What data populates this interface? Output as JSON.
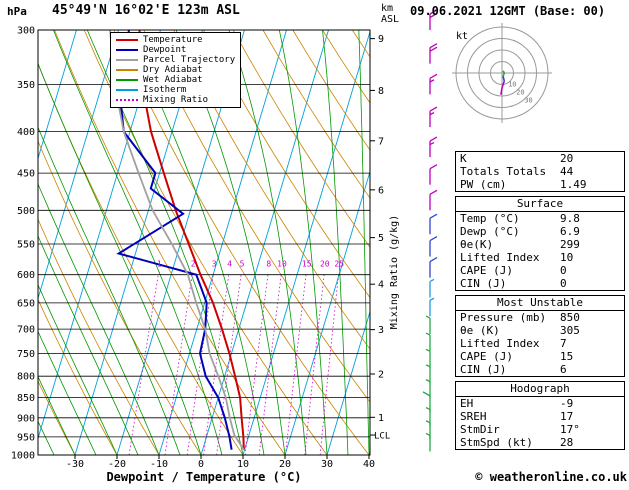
{
  "header": {
    "pressure_unit": "hPa",
    "station": "45°49'N 16°02'E 123m ASL",
    "km_label": "km",
    "asl_label": "ASL",
    "datetime": "09.06.2021 12GMT (Base: 00)"
  },
  "axes": {
    "pressure_ticks": [
      300,
      350,
      400,
      450,
      500,
      550,
      600,
      650,
      700,
      750,
      800,
      850,
      900,
      950,
      1000
    ],
    "temp_ticks": [
      -30,
      -20,
      -10,
      0,
      10,
      20,
      30,
      40
    ],
    "km_ticks": [
      9,
      8,
      7,
      6,
      5,
      4,
      3,
      2,
      1
    ],
    "lcl_label": "LCL",
    "xlabel": "Dewpoint / Temperature (°C)",
    "mixing_ratio_label": "Mixing Ratio (g/kg)",
    "mixing_ratio_values": [
      1,
      2,
      3,
      4,
      5,
      8,
      10,
      15,
      20,
      25
    ]
  },
  "legend": {
    "items": [
      {
        "label": "Temperature",
        "color": "#cc0000",
        "style": "solid"
      },
      {
        "label": "Dewpoint",
        "color": "#0000bb",
        "style": "solid"
      },
      {
        "label": "Parcel Trajectory",
        "color": "#a0a0a0",
        "style": "solid"
      },
      {
        "label": "Dry Adiabat",
        "color": "#cc8400",
        "style": "solid"
      },
      {
        "label": "Wet Adiabat",
        "color": "#009900",
        "style": "solid"
      },
      {
        "label": "Isotherm",
        "color": "#00a0dd",
        "style": "solid"
      },
      {
        "label": "Mixing Ratio",
        "color": "#cc00cc",
        "style": "dotted"
      }
    ]
  },
  "chart_data": {
    "type": "line",
    "title": "Skew-T log-P sounding",
    "pressure_axis_hpa": [
      300,
      1000
    ],
    "temp_axis_c": [
      -40,
      40
    ],
    "series": [
      {
        "name": "Temperature",
        "color": "#cc0000",
        "points_p_t": [
          [
            985,
            9.8
          ],
          [
            950,
            8.8
          ],
          [
            900,
            7.0
          ],
          [
            850,
            5.2
          ],
          [
            800,
            2.5
          ],
          [
            750,
            -0.5
          ],
          [
            700,
            -4.0
          ],
          [
            650,
            -8.0
          ],
          [
            600,
            -13.0
          ],
          [
            550,
            -18.0
          ],
          [
            500,
            -23.5
          ],
          [
            450,
            -29.0
          ],
          [
            400,
            -35.0
          ],
          [
            350,
            -40.5
          ],
          [
            300,
            -45.0
          ]
        ]
      },
      {
        "name": "Dewpoint",
        "color": "#0000bb",
        "points_p_t": [
          [
            985,
            6.9
          ],
          [
            950,
            5.5
          ],
          [
            900,
            3.0
          ],
          [
            850,
            0.0
          ],
          [
            800,
            -4.5
          ],
          [
            750,
            -7.5
          ],
          [
            700,
            -8.0
          ],
          [
            650,
            -9.5
          ],
          [
            600,
            -14.0
          ],
          [
            565,
            -34.0
          ],
          [
            505,
            -21.5
          ],
          [
            470,
            -31.0
          ],
          [
            450,
            -31.0
          ],
          [
            400,
            -41.5
          ],
          [
            350,
            -46.0
          ],
          [
            300,
            -47.5
          ]
        ]
      },
      {
        "name": "Parcel Trajectory",
        "color": "#a0a0a0",
        "points_p_t": [
          [
            985,
            9.8
          ],
          [
            945,
            6.5
          ],
          [
            900,
            4.2
          ],
          [
            850,
            1.8
          ],
          [
            800,
            -1.5
          ],
          [
            750,
            -5.2
          ],
          [
            700,
            -8.0
          ],
          [
            650,
            -12.0
          ],
          [
            600,
            -16.0
          ],
          [
            550,
            -22.0
          ],
          [
            500,
            -29.0
          ],
          [
            450,
            -35.0
          ],
          [
            400,
            -41.5
          ],
          [
            350,
            -47.0
          ],
          [
            300,
            -52.0
          ]
        ]
      }
    ],
    "isotherms_c": {
      "start": -100,
      "end": 40,
      "step": 10
    },
    "dry_adiabats_theta_c": {
      "start": -40,
      "end": 140,
      "step": 10
    },
    "wet_adiabats_start_c": {
      "start": -40,
      "end": 40,
      "step": 5
    },
    "mixing_ratio_lines_gkg": [
      1,
      2,
      3,
      4,
      5,
      8,
      10,
      15,
      20,
      25
    ],
    "grid_colors": {
      "isotherm": "#00a0dd",
      "dry_adiabat": "#cc8400",
      "wet_adiabat": "#009900",
      "mixing_ratio": "#cc00cc",
      "isobar": "#000000"
    }
  },
  "wind_barbs": [
    {
      "p": 300,
      "speed_kt": 20,
      "color": "#bb00bb",
      "side": "right"
    },
    {
      "p": 330,
      "speed_kt": 20,
      "color": "#bb00bb",
      "side": "right"
    },
    {
      "p": 360,
      "speed_kt": 15,
      "color": "#bb00bb",
      "side": "right"
    },
    {
      "p": 395,
      "speed_kt": 15,
      "color": "#bb00bb",
      "side": "right"
    },
    {
      "p": 430,
      "speed_kt": 15,
      "color": "#bb00bb",
      "side": "right"
    },
    {
      "p": 465,
      "speed_kt": 10,
      "color": "#bb00bb",
      "side": "right"
    },
    {
      "p": 500,
      "speed_kt": 10,
      "color": "#bb00bb",
      "side": "right"
    },
    {
      "p": 535,
      "speed_kt": 10,
      "color": "#3344cc",
      "side": "right"
    },
    {
      "p": 570,
      "speed_kt": 10,
      "color": "#3344cc",
      "side": "right"
    },
    {
      "p": 605,
      "speed_kt": 10,
      "color": "#3344cc",
      "side": "right"
    },
    {
      "p": 640,
      "speed_kt": 5,
      "color": "#2299dd",
      "side": "right"
    },
    {
      "p": 675,
      "speed_kt": 5,
      "color": "#2299dd",
      "side": "right"
    },
    {
      "p": 710,
      "speed_kt": 5,
      "color": "#22aa44",
      "side": "left"
    },
    {
      "p": 745,
      "speed_kt": 5,
      "color": "#22aa44",
      "side": "left"
    },
    {
      "p": 780,
      "speed_kt": 5,
      "color": "#22aa44",
      "side": "left"
    },
    {
      "p": 815,
      "speed_kt": 5,
      "color": "#22aa44",
      "side": "left"
    },
    {
      "p": 850,
      "speed_kt": 5,
      "color": "#22aa44",
      "side": "left"
    },
    {
      "p": 885,
      "speed_kt": 10,
      "color": "#22aa44",
      "side": "left"
    },
    {
      "p": 920,
      "speed_kt": 5,
      "color": "#22aa44",
      "side": "left"
    },
    {
      "p": 955,
      "speed_kt": 5,
      "color": "#22aa44",
      "side": "left"
    },
    {
      "p": 990,
      "speed_kt": 5,
      "color": "#22aa44",
      "side": "left"
    }
  ],
  "hodograph": {
    "unit_label": "kt",
    "rings_kt": [
      10,
      20,
      30,
      40
    ],
    "ring_labels": [
      10,
      20,
      30
    ],
    "trace": [
      {
        "color": "#22aa44",
        "points": [
          [
            1,
            2
          ],
          [
            2,
            0
          ],
          [
            1,
            -3
          ]
        ]
      },
      {
        "color": "#3344cc",
        "points": [
          [
            1,
            -3
          ],
          [
            2,
            -7
          ]
        ]
      },
      {
        "color": "#bb00bb",
        "points": [
          [
            2,
            -7
          ],
          [
            0,
            -13
          ],
          [
            -1,
            -19
          ]
        ]
      }
    ]
  },
  "panel": {
    "sections": [
      {
        "id": "indices",
        "title": null,
        "rows": [
          {
            "label": "K",
            "value": "20"
          },
          {
            "label": "Totals Totals",
            "value": "44"
          },
          {
            "label": "PW (cm)",
            "value": "1.49"
          }
        ]
      },
      {
        "id": "surface",
        "title": "Surface",
        "rows": [
          {
            "label": "Temp (°C)",
            "value": "9.8"
          },
          {
            "label": "Dewp (°C)",
            "value": "6.9"
          },
          {
            "label": "θe(K)",
            "value": "299"
          },
          {
            "label": "Lifted Index",
            "value": "10"
          },
          {
            "label": "CAPE (J)",
            "value": "0"
          },
          {
            "label": "CIN (J)",
            "value": "0"
          }
        ]
      },
      {
        "id": "most-unstable",
        "title": "Most Unstable",
        "rows": [
          {
            "label": "Pressure (mb)",
            "value": "850"
          },
          {
            "label": "θe (K)",
            "value": "305"
          },
          {
            "label": "Lifted Index",
            "value": "7"
          },
          {
            "label": "CAPE (J)",
            "value": "15"
          },
          {
            "label": "CIN (J)",
            "value": "6"
          }
        ]
      },
      {
        "id": "hodograph",
        "title": "Hodograph",
        "rows": [
          {
            "label": "EH",
            "value": "-9"
          },
          {
            "label": "SREH",
            "value": "17"
          },
          {
            "label": "StmDir",
            "value": "17°"
          },
          {
            "label": "StmSpd (kt)",
            "value": "28"
          }
        ]
      }
    ]
  },
  "footer": {
    "copyright": "© weatheronline.co.uk"
  }
}
